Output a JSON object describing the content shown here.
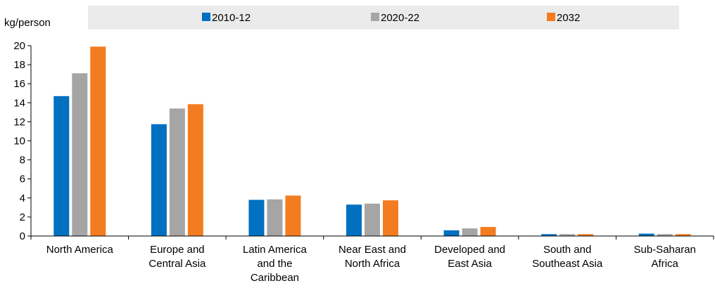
{
  "chart_data": {
    "type": "bar",
    "ylabel": "kg/person",
    "ylim": [
      0,
      20
    ],
    "yticks": [
      0,
      2,
      4,
      6,
      8,
      10,
      12,
      14,
      16,
      18,
      20
    ],
    "categories": [
      [
        "North America"
      ],
      [
        "Europe and",
        "Central Asia"
      ],
      [
        "Latin America",
        "and the",
        "Caribbean"
      ],
      [
        "Near East and",
        "North Africa"
      ],
      [
        "Developed and",
        "East Asia"
      ],
      [
        "South and",
        "Southeast Asia"
      ],
      [
        "Sub-Saharan",
        "Africa"
      ]
    ],
    "series": [
      {
        "name": "2010-12",
        "color": "#0070C0",
        "values": [
          14.7,
          11.75,
          3.8,
          3.3,
          0.6,
          0.2,
          0.25
        ]
      },
      {
        "name": "2020-22",
        "color": "#A5A5A5",
        "values": [
          17.1,
          13.4,
          3.85,
          3.4,
          0.8,
          0.2,
          0.2
        ]
      },
      {
        "name": "2032",
        "color": "#F47C20",
        "values": [
          19.9,
          13.85,
          4.25,
          3.75,
          0.95,
          0.2,
          0.2
        ]
      }
    ],
    "legend": {
      "position": "top",
      "background": "#EBEBEB"
    },
    "grid": false
  }
}
